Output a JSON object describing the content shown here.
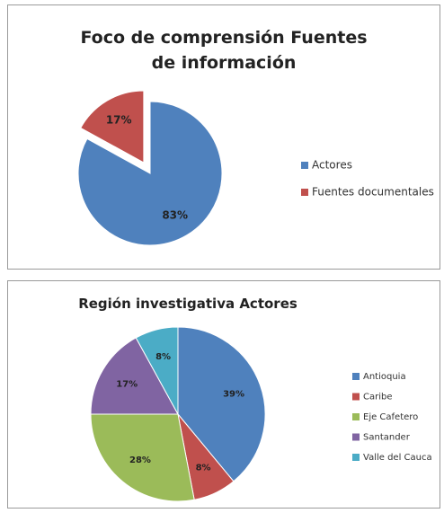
{
  "chart_data": [
    {
      "type": "pie",
      "title": "Foco de comprensión Fuentes de información",
      "categories": [
        "Actores",
        "Fuentes documentales"
      ],
      "values": [
        83,
        17
      ],
      "value_labels": [
        "83%",
        "17%"
      ],
      "colors": [
        "#4f81bd",
        "#c0504d"
      ],
      "legend": "right"
    },
    {
      "type": "pie",
      "title": "Región investigativa Actores",
      "categories": [
        "Antioquia",
        "Caribe",
        "Eje Cafetero",
        "Santander",
        "Valle del Cauca"
      ],
      "values": [
        39,
        8,
        28,
        17,
        8
      ],
      "value_labels": [
        "39%",
        "8%",
        "28%",
        "17%",
        "8%"
      ],
      "colors": [
        "#4f81bd",
        "#c0504d",
        "#9bbb59",
        "#8064a2",
        "#4bacc6"
      ],
      "legend": "right"
    }
  ]
}
